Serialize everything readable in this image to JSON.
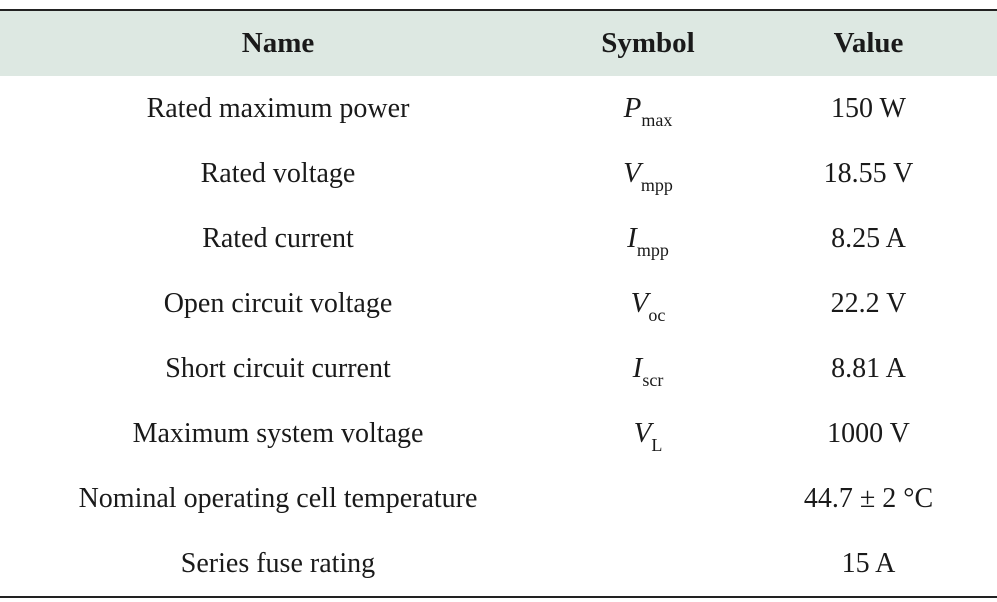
{
  "table": {
    "header": [
      "Name",
      "Symbol",
      "Value"
    ],
    "rows": [
      {
        "name": "Rated maximum power",
        "symbol": {
          "base": "P",
          "sub": "max"
        },
        "value": "150 W"
      },
      {
        "name": "Rated voltage",
        "symbol": {
          "base": "V",
          "sub": "mpp"
        },
        "value": "18.55 V"
      },
      {
        "name": "Rated current",
        "symbol": {
          "base": "I",
          "sub": "mpp"
        },
        "value": "8.25 A"
      },
      {
        "name": "Open circuit voltage",
        "symbol": {
          "base": "V",
          "sub": "oc"
        },
        "value": "22.2 V"
      },
      {
        "name": "Short circuit current",
        "symbol": {
          "base": "I",
          "sub": "scr"
        },
        "value": "8.81 A"
      },
      {
        "name": "Maximum system voltage",
        "symbol": {
          "base": "V",
          "sub": "L"
        },
        "value": "1000 V"
      },
      {
        "name": "Nominal operating cell temperature",
        "value": "44.7 ± 2 °C"
      },
      {
        "name": "Series fuse rating",
        "value": "15 A"
      }
    ]
  }
}
